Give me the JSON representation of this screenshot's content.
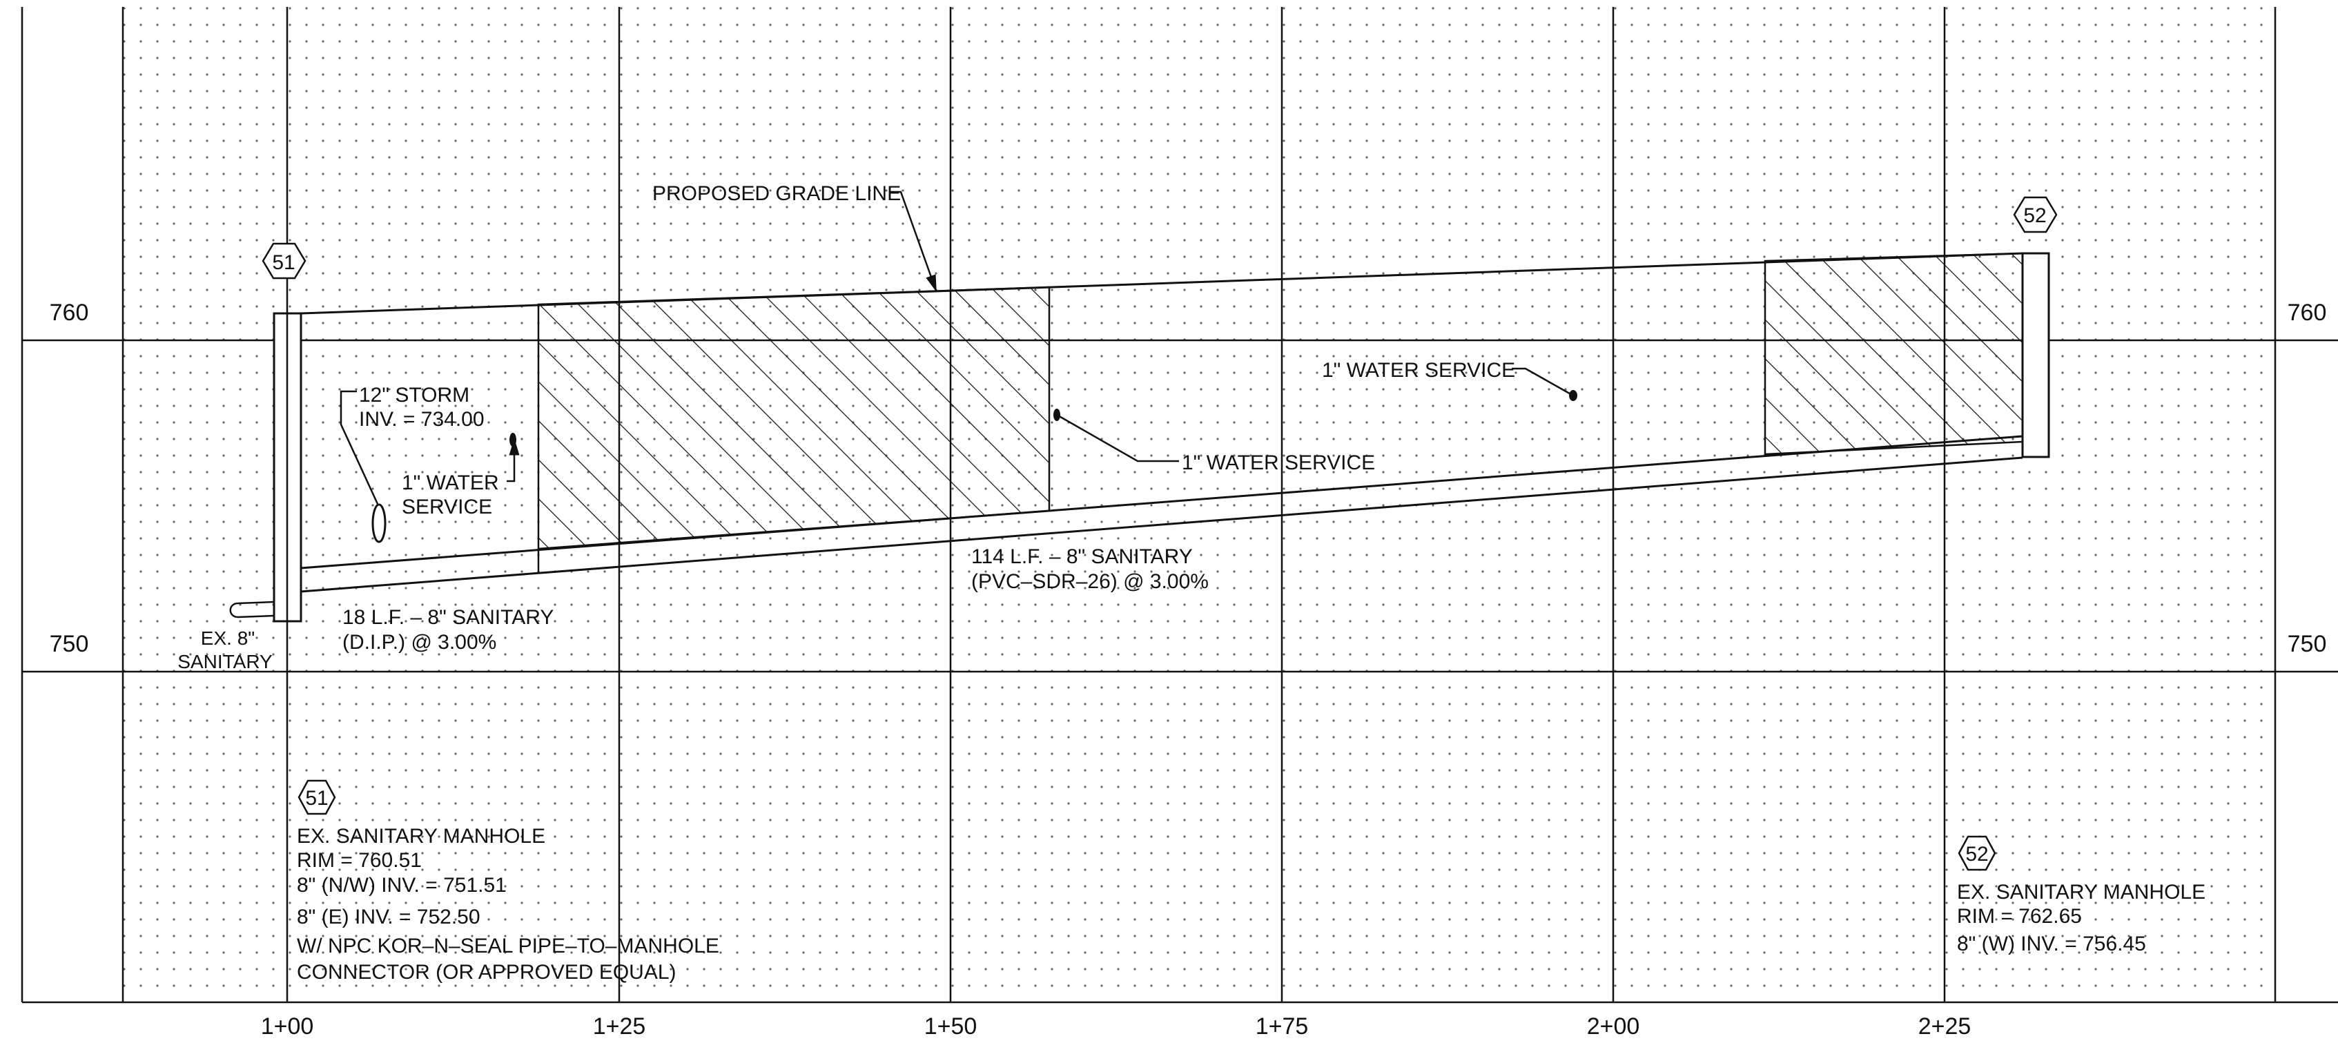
{
  "axes": {
    "elevation_labels": [
      "760",
      "750"
    ],
    "station_labels": [
      "1+00",
      "1+25",
      "1+50",
      "1+75",
      "2+00",
      "2+25"
    ]
  },
  "manholes": {
    "mh51": {
      "tag": "51"
    },
    "mh52": {
      "tag": "52"
    }
  },
  "callouts": {
    "proposed_grade": "PROPOSED GRADE LINE",
    "storm_line1": "12\" STORM",
    "storm_line2": "INV. = 734.00",
    "water_left_line1": "1\" WATER",
    "water_left_line2": "SERVICE",
    "water_mid": "1\" WATER SERVICE",
    "water_right": "1\" WATER SERVICE",
    "ex_sanitary_line1": "EX. 8\"",
    "ex_sanitary_line2": "SANITARY",
    "pipe_short_line1": "18 L.F. – 8\" SANITARY",
    "pipe_short_line2": "(D.I.P.) @ 3.00%",
    "pipe_long_line1": "114 L.F. – 8\" SANITARY",
    "pipe_long_line2": "(PVC–SDR–26) @ 3.00%"
  },
  "notes": {
    "mh51": {
      "tag": "51",
      "lines": [
        "EX. SANITARY MANHOLE",
        "RIM = 760.51",
        "8\" (N/W) INV. = 751.51",
        "8\" (E) INV. = 752.50",
        "W/ NPC KOR–N–SEAL PIPE–TO–MANHOLE",
        "CONNECTOR (OR APPROVED EQUAL)"
      ]
    },
    "mh52": {
      "tag": "52",
      "lines": [
        "EX. SANITARY MANHOLE",
        "RIM = 762.65",
        "8\" (W) INV. = 756.45"
      ]
    }
  }
}
